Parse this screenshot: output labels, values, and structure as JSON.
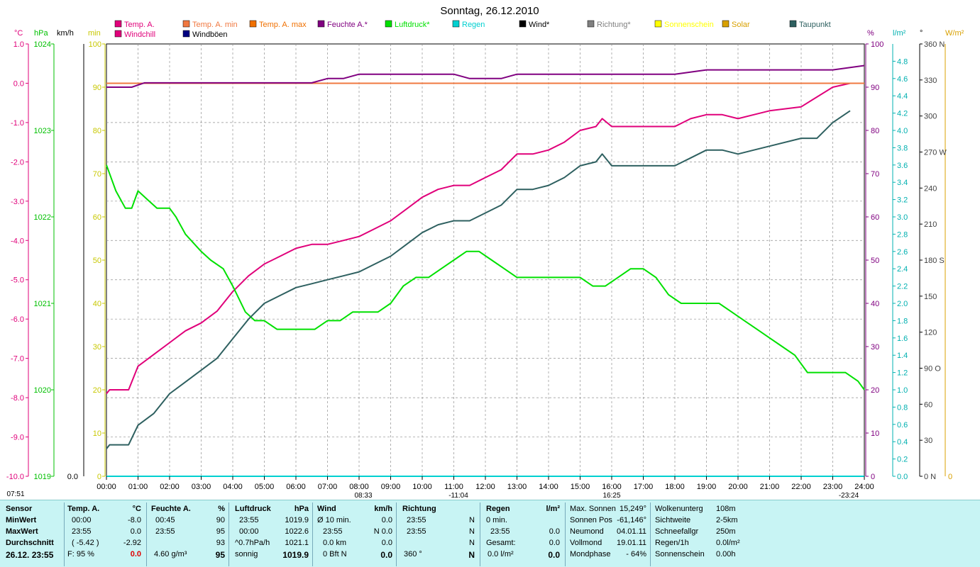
{
  "title": "Sonntag, 26.12.2010",
  "legend": [
    {
      "label": "Temp. A.",
      "color": "#e0007a"
    },
    {
      "label": "Temp. A. min",
      "color": "#f07840"
    },
    {
      "label": "Temp. A. max",
      "color": "#f07000"
    },
    {
      "label": "Feuchte A.*",
      "color": "#800080"
    },
    {
      "label": "Luftdruck*",
      "color": "#00e000"
    },
    {
      "label": "Regen",
      "color": "#00d0d0"
    },
    {
      "label": "Wind*",
      "color": "#000000"
    },
    {
      "label": "Richtung*",
      "color": "#808080"
    },
    {
      "label": "Sonnenschein",
      "color": "#ffff00"
    },
    {
      "label": "Solar",
      "color": "#d8a000"
    },
    {
      "label": "Taupunkt",
      "color": "#2e6060"
    },
    {
      "label": "Windchill",
      "color": "#e0007a"
    },
    {
      "label": "Windböen",
      "color": "#000080"
    }
  ],
  "axes_left": {
    "temp_unit": "°C",
    "press_unit": "hPa",
    "wind_unit": "km/h",
    "min_unit": "min",
    "temp_ticks": [
      "1.0",
      "0.0",
      "-1.0",
      "-2.0",
      "-3.0",
      "-4.0",
      "-5.0",
      "-6.0",
      "-7.0",
      "-8.0",
      "-9.0",
      "-10.0"
    ],
    "press_ticks": [
      "1024",
      "1023",
      "1022",
      "1021",
      "1020",
      "1019"
    ],
    "wind_ticks": [
      "0.0"
    ],
    "min_ticks": [
      "100",
      "90",
      "80",
      "70",
      "60",
      "50",
      "40",
      "30",
      "20",
      "10",
      "0"
    ]
  },
  "axes_right": {
    "pct_unit": "%",
    "rain_unit": "l/m²",
    "deg_unit": "°",
    "solar_unit": "W/m²",
    "pct_ticks": [
      "100",
      "90",
      "80",
      "70",
      "60",
      "50",
      "40",
      "30",
      "20",
      "10",
      "0"
    ],
    "rain_ticks": [
      "4.8",
      "4.6",
      "4.4",
      "4.2",
      "4.0",
      "3.8",
      "3.6",
      "3.4",
      "3.2",
      "3.0",
      "2.8",
      "2.6",
      "2.4",
      "2.2",
      "2.0",
      "1.8",
      "1.6",
      "1.4",
      "1.2",
      "1.0",
      "0.8",
      "0.6",
      "0.4",
      "0.2",
      "0.0"
    ],
    "deg_ticks": [
      "360 N",
      "330",
      "300",
      "270 W",
      "240",
      "210",
      "180 S",
      "150",
      "120",
      "90  O",
      "60",
      "30",
      "0   N"
    ],
    "solar_ticks": [
      "0"
    ]
  },
  "x_ticks": [
    "00:00",
    "01:00",
    "02:00",
    "03:00",
    "04:00",
    "05:00",
    "06:00",
    "07:00",
    "08:00",
    "09:00",
    "10:00",
    "11:00",
    "12:00",
    "13:00",
    "14:00",
    "15:00",
    "16:00",
    "17:00",
    "18:00",
    "19:00",
    "20:00",
    "21:00",
    "22:00",
    "23:00",
    "24:00"
  ],
  "x_markers": [
    "07:51",
    "08:33",
    "-11:04",
    "16:25",
    "-23:24"
  ],
  "chart_data": {
    "type": "line",
    "title": "Sonntag, 26.12.2010",
    "xlabel": "",
    "ylabel": "",
    "x_range_hours": [
      0,
      24
    ],
    "grid": true,
    "legend_position": "top",
    "series": [
      {
        "name": "Temp. A.",
        "unit": "°C",
        "axis": "temp",
        "ylim": [
          -10,
          1
        ],
        "color": "#e0007a",
        "x": [
          0,
          0.1,
          0.7,
          1,
          1.5,
          2,
          2.5,
          3,
          3.5,
          4,
          4.5,
          5,
          5.5,
          6,
          6.5,
          7,
          7.5,
          8,
          8.5,
          9,
          9.5,
          10,
          10.5,
          11,
          11.5,
          12,
          12.5,
          13,
          13.5,
          14,
          14.5,
          15,
          15.5,
          15.7,
          16,
          17,
          18,
          18.5,
          19,
          19.5,
          20,
          20.5,
          21,
          22,
          23,
          23.55
        ],
        "y": [
          -7.9,
          -7.8,
          -7.8,
          -7.2,
          -6.9,
          -6.6,
          -6.3,
          -6.1,
          -5.8,
          -5.3,
          -4.9,
          -4.6,
          -4.4,
          -4.2,
          -4.1,
          -4.1,
          -4.0,
          -3.9,
          -3.7,
          -3.5,
          -3.2,
          -2.9,
          -2.7,
          -2.6,
          -2.6,
          -2.4,
          -2.2,
          -1.8,
          -1.8,
          -1.7,
          -1.5,
          -1.2,
          -1.1,
          -0.9,
          -1.1,
          -1.1,
          -1.1,
          -0.9,
          -0.8,
          -0.8,
          -0.9,
          -0.8,
          -0.7,
          -0.6,
          -0.1,
          0.0
        ]
      },
      {
        "name": "Temp. A. min",
        "unit": "°C",
        "axis": "temp",
        "ylim": [
          -10,
          1
        ],
        "color": "#f07840",
        "x": [
          0,
          24
        ],
        "y": [
          0.0,
          0.0
        ]
      },
      {
        "name": "Feuchte A.*",
        "unit": "%",
        "axis": "pct",
        "ylim": [
          0,
          100
        ],
        "color": "#800080",
        "x": [
          0,
          0.3,
          0.8,
          1.2,
          2,
          4,
          6,
          6.5,
          7,
          7.5,
          8,
          8.5,
          9,
          10,
          11,
          11.5,
          12,
          12.5,
          13,
          13.5,
          14,
          15,
          16,
          17,
          18,
          19,
          20,
          21,
          22,
          23,
          24
        ],
        "y": [
          90,
          90,
          90,
          91,
          91,
          91,
          91,
          91,
          92,
          92,
          93,
          93,
          93,
          93,
          93,
          92,
          92,
          92,
          93,
          93,
          93,
          93,
          93,
          93,
          93,
          94,
          94,
          94,
          94,
          94,
          95
        ]
      },
      {
        "name": "Luftdruck*",
        "unit": "hPa",
        "axis": "press",
        "ylim": [
          1019,
          1024
        ],
        "color": "#00e000",
        "x": [
          0,
          0.3,
          0.6,
          0.8,
          1,
          1.3,
          1.6,
          2,
          2.2,
          2.5,
          3,
          3.3,
          3.7,
          4,
          4.4,
          4.7,
          5,
          5.4,
          5.8,
          6.2,
          6.6,
          7,
          7.4,
          7.8,
          8.2,
          8.6,
          9,
          9.4,
          9.8,
          10.2,
          10.6,
          11,
          11.4,
          11.8,
          12.2,
          12.6,
          13,
          13.4,
          13.8,
          14.2,
          14.6,
          15,
          15.4,
          15.8,
          16.2,
          16.6,
          17,
          17.4,
          17.8,
          18.2,
          18.6,
          19,
          19.4,
          19.8,
          20.2,
          20.6,
          21,
          21.4,
          21.8,
          22.2,
          22.6,
          23,
          23.4,
          23.8,
          24
        ],
        "y": [
          1022.6,
          1022.3,
          1022.1,
          1022.1,
          1022.3,
          1022.2,
          1022.1,
          1022.1,
          1022.0,
          1021.8,
          1021.6,
          1021.5,
          1021.4,
          1021.2,
          1020.9,
          1020.8,
          1020.8,
          1020.7,
          1020.7,
          1020.7,
          1020.7,
          1020.8,
          1020.8,
          1020.9,
          1020.9,
          1020.9,
          1021.0,
          1021.2,
          1021.3,
          1021.3,
          1021.4,
          1021.5,
          1021.6,
          1021.6,
          1021.5,
          1021.4,
          1021.3,
          1021.3,
          1021.3,
          1021.3,
          1021.3,
          1021.3,
          1021.2,
          1021.2,
          1021.3,
          1021.4,
          1021.4,
          1021.3,
          1021.1,
          1021.0,
          1021.0,
          1021.0,
          1021.0,
          1020.9,
          1020.8,
          1020.7,
          1020.6,
          1020.5,
          1020.4,
          1020.2,
          1020.2,
          1020.2,
          1020.2,
          1020.1,
          1020.0
        ]
      },
      {
        "name": "Regen",
        "unit": "l/m²",
        "axis": "rain",
        "ylim": [
          0,
          4.8
        ],
        "color": "#00d0d0",
        "x": [
          0,
          24
        ],
        "y": [
          0.0,
          0.0
        ]
      },
      {
        "name": "Taupunkt",
        "unit": "°C",
        "axis": "temp",
        "ylim": [
          -10,
          1
        ],
        "color": "#2e6060",
        "x": [
          0,
          0.1,
          0.7,
          1,
          1.5,
          2,
          2.5,
          3,
          3.5,
          4,
          4.5,
          5,
          5.5,
          6,
          6.5,
          7,
          7.5,
          8,
          8.5,
          9,
          9.5,
          10,
          10.5,
          11,
          11.5,
          12,
          12.5,
          13,
          13.5,
          14,
          14.5,
          15,
          15.5,
          15.7,
          16,
          17,
          18,
          18.5,
          19,
          19.5,
          20,
          20.5,
          21,
          22,
          22.5,
          23,
          23.55
        ],
        "y": [
          -9.3,
          -9.2,
          -9.2,
          -8.7,
          -8.4,
          -7.9,
          -7.6,
          -7.3,
          -7.0,
          -6.5,
          -6.0,
          -5.6,
          -5.4,
          -5.2,
          -5.1,
          -5.0,
          -4.9,
          -4.8,
          -4.6,
          -4.4,
          -4.1,
          -3.8,
          -3.6,
          -3.5,
          -3.5,
          -3.3,
          -3.1,
          -2.7,
          -2.7,
          -2.6,
          -2.4,
          -2.1,
          -2.0,
          -1.8,
          -2.1,
          -2.1,
          -2.1,
          -1.9,
          -1.7,
          -1.7,
          -1.8,
          -1.7,
          -1.6,
          -1.4,
          -1.4,
          -1.0,
          -0.7
        ]
      }
    ]
  },
  "panel": {
    "sensor": {
      "header": "Sensor",
      "rows": [
        "MinWert",
        "MaxWert",
        "Durchschnitt"
      ],
      "date": "26.12. 23:55"
    },
    "temp": {
      "header": "Temp. A.",
      "unit": "°C",
      "min_time": "00:00",
      "min_val": "-8.0",
      "max_time": "23:55",
      "max_val": "0.0",
      "avg": "( -5.42 )",
      "avg2": "-2.92",
      "foot_label": "F: 95 %",
      "foot_val": "0.0"
    },
    "hum": {
      "header": "Feuchte A.",
      "unit": "%",
      "min_time": "00:45",
      "min_val": "90",
      "max_time": "23:55",
      "max_val": "95",
      "avg": "93",
      "foot_label": "4.60 g/m³",
      "foot_val": "95"
    },
    "press": {
      "header": "Luftdruck",
      "unit": "hPa",
      "r1_time": "23:55",
      "r1_val": "1019.9",
      "r2_time": "00:00",
      "r2_val": "1022.6",
      "r3_label": "^0.7hPa/h",
      "r3_val": "1021.1",
      "foot_label": "sonnig",
      "foot_val": "1019.9"
    },
    "wind": {
      "header": "Wind",
      "unit": "km/h",
      "r1_label": "Ø 10 min.",
      "r1_val": "0.0",
      "r2_time": "23:55",
      "r2_val": "N 0.0",
      "r3_label": "0.0 km",
      "r3_val": "0.0",
      "foot_label": "0 Bft N",
      "foot_val": "0.0"
    },
    "dir": {
      "header": "Richtung",
      "r1_time": "23:55",
      "r1_val": "N",
      "r2_time": "23:55",
      "r2_val": "N",
      "r3_val": "N",
      "foot_label": "360 °",
      "foot_val": "N"
    },
    "rain": {
      "header": "Regen",
      "unit": "l/m²",
      "r1_label": "0 min.",
      "r2_time": "23:55",
      "r2_val": "0.0",
      "r3_label": "Gesamt:",
      "r3_val": "0.0",
      "foot_label": "0.0 l/m²",
      "foot_val": "0.0"
    },
    "astro": {
      "r0_label": "Max. Sonnen",
      "r0_val": "15,249°",
      "r1_label": "Sonnen Pos",
      "r1_val": "-61,146°",
      "r2_label": "Neumond",
      "r2_val": "04.01.11",
      "r3_label": "Vollmond",
      "r3_val": "19.01.11",
      "r4_label": "Mondphase",
      "r4_val": "- 64%"
    },
    "cloud": {
      "r0_label": "Wolkenunterg",
      "r0_val": "108m",
      "r1_label": "Sichtweite",
      "r1_val": "2-5km",
      "r2_label": "Schneefallgr",
      "r2_val": "250m",
      "r3_label": "Regen/1h",
      "r3_val": "0.0l/m²",
      "r4_label": "Sonnenschein",
      "r4_val": "0.00h"
    }
  }
}
